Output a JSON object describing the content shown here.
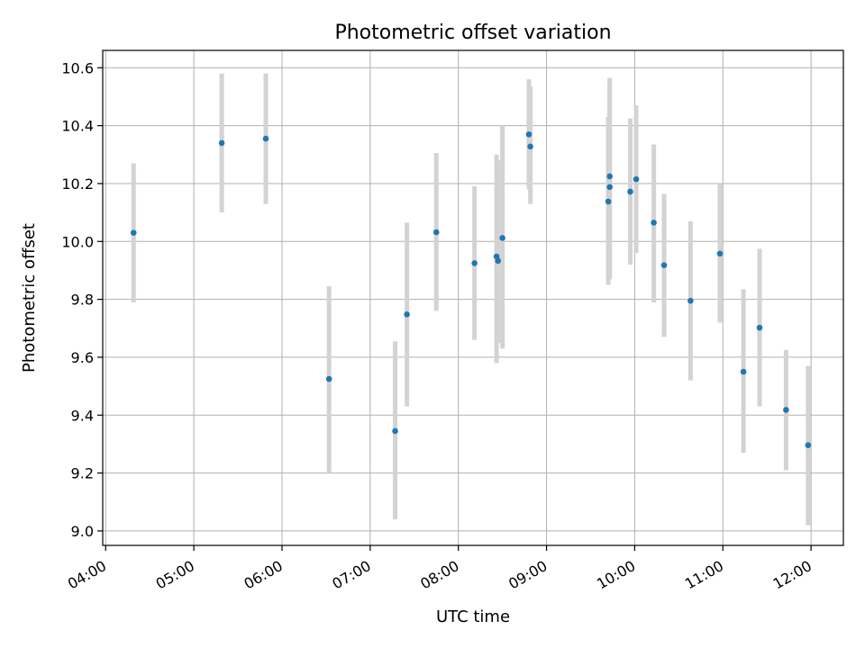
{
  "chart_data": {
    "type": "scatter",
    "title": "Photometric offset variation",
    "xlabel": "UTC time",
    "ylabel": "Photometric offset",
    "xlim": [
      "03:58",
      "12:22"
    ],
    "ylim": [
      8.95,
      10.66
    ],
    "grid": true,
    "x_ticks": [
      "04:00",
      "05:00",
      "06:00",
      "07:00",
      "08:00",
      "09:00",
      "10:00",
      "11:00",
      "12:00"
    ],
    "y_ticks": [
      "9.0",
      "9.2",
      "9.4",
      "9.6",
      "9.8",
      "10.0",
      "10.2",
      "10.4",
      "10.6"
    ],
    "colors": {
      "points": "#1f77b4",
      "error_bars": "#d3d3d3",
      "grid": "#b0b0b0"
    },
    "series": [
      {
        "x": [
          "04:19",
          "05:19",
          "05:49",
          "06:32",
          "07:17",
          "07:25",
          "07:45",
          "08:11",
          "08:26",
          "08:27",
          "08:30",
          "08:48",
          "08:49",
          "09:42",
          "09:43",
          "09:43",
          "09:57",
          "10:01",
          "10:13",
          "10:20",
          "10:38",
          "10:58",
          "11:14",
          "11:25",
          "11:43",
          "11:58"
        ],
        "y": [
          10.03,
          10.34,
          10.355,
          9.525,
          9.345,
          9.748,
          10.032,
          9.925,
          9.948,
          9.933,
          10.012,
          10.37,
          10.328,
          10.138,
          10.188,
          10.225,
          10.172,
          10.215,
          10.065,
          9.918,
          9.795,
          9.958,
          9.55,
          9.702,
          9.418,
          9.296
        ],
        "err_low": [
          9.79,
          10.1,
          10.13,
          9.2,
          9.04,
          9.43,
          9.76,
          9.66,
          9.58,
          9.65,
          9.63,
          10.18,
          10.13,
          9.85,
          9.87,
          9.88,
          9.92,
          9.96,
          9.79,
          9.67,
          9.52,
          9.72,
          9.27,
          9.43,
          9.21,
          9.02
        ],
        "err_high": [
          10.27,
          10.58,
          10.58,
          9.845,
          9.655,
          10.065,
          10.305,
          10.19,
          10.3,
          10.28,
          10.4,
          10.56,
          10.535,
          10.43,
          10.51,
          10.565,
          10.425,
          10.47,
          10.335,
          10.165,
          10.07,
          10.2,
          9.835,
          9.975,
          9.625,
          9.57
        ]
      }
    ]
  }
}
